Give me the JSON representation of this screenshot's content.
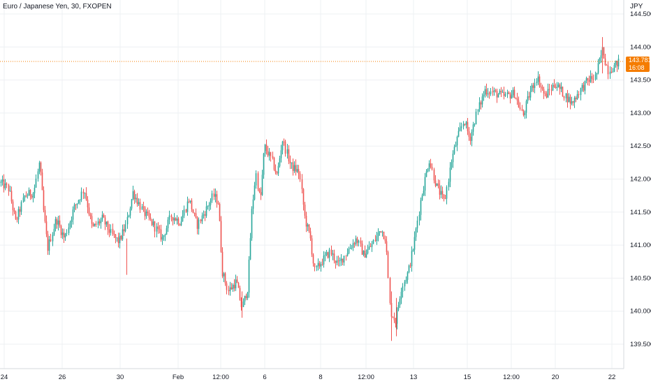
{
  "header": {
    "symbol_title": "Euro / Japanese Yen, 30, FXOPEN",
    "currency": "JPY"
  },
  "price_tag": {
    "price": "143.781",
    "countdown": "16:08",
    "color": "#f57c00"
  },
  "colors": {
    "up": "#26a69a",
    "down": "#ef5350",
    "grid": "#eef0f3"
  },
  "chart_data": {
    "type": "candlestick",
    "title": "Euro / Japanese Yen, 30, FXOPEN",
    "ylabel": "JPY",
    "ylim": [
      139.4,
      144.55
    ],
    "y_ticks": [
      "139.500",
      "140.000",
      "140.500",
      "141.000",
      "141.500",
      "142.000",
      "142.500",
      "143.000",
      "143.500",
      "144.000",
      "144.500"
    ],
    "x_ticks": [
      "24",
      "26",
      "30",
      "Feb",
      "12:00",
      "6",
      "8",
      "12:00",
      "13",
      "15",
      "12:00",
      "20",
      "22"
    ],
    "last_price": 143.781,
    "price_path": [
      {
        "x": "24",
        "close": 141.95
      },
      {
        "x": "26",
        "close": 141.55
      },
      {
        "x": "30",
        "close": 141.75
      },
      {
        "x": "Feb",
        "close": 141.45
      },
      {
        "x": "12:00",
        "close": 141.6
      },
      {
        "x": "12:00",
        "close": 140.15
      },
      {
        "x": "6",
        "close": 142.3
      },
      {
        "x": "8",
        "close": 140.85
      },
      {
        "x": "12:00",
        "close": 141.2
      },
      {
        "x": "12:00",
        "close": 139.9
      },
      {
        "x": "13",
        "close": 141.8
      },
      {
        "x": "15",
        "close": 142.9
      },
      {
        "x": "12:00",
        "close": 143.25
      },
      {
        "x": "20",
        "close": 143.4
      },
      {
        "x": "22",
        "close": 143.78
      }
    ]
  }
}
